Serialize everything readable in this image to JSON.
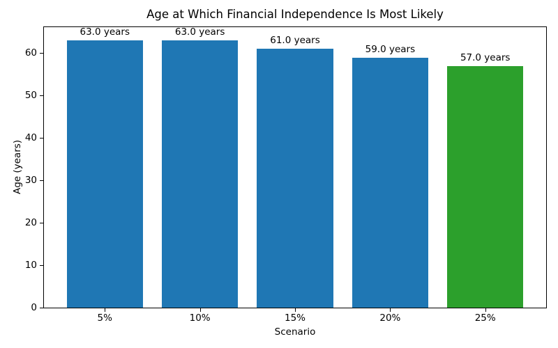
{
  "chart_data": {
    "type": "bar",
    "title": "Age at Which Financial Independence Is Most Likely",
    "xlabel": "Scenario",
    "ylabel": "Age (years)",
    "categories": [
      "5%",
      "10%",
      "15%",
      "20%",
      "25%"
    ],
    "values": [
      63.0,
      63.0,
      61.0,
      59.0,
      57.0
    ],
    "bar_labels": [
      "63.0 years",
      "63.0 years",
      "61.0 years",
      "59.0 years",
      "57.0 years"
    ],
    "bar_colors": [
      "#1f77b4",
      "#1f77b4",
      "#1f77b4",
      "#1f77b4",
      "#2ca02c"
    ],
    "yticks": [
      0,
      10,
      20,
      30,
      40,
      50,
      60
    ],
    "ylim": [
      0,
      66.15
    ],
    "bar_width_fraction": 0.8,
    "grid": false,
    "legend_position": "none",
    "axis_color": "#000000",
    "background_color": "#ffffff"
  }
}
